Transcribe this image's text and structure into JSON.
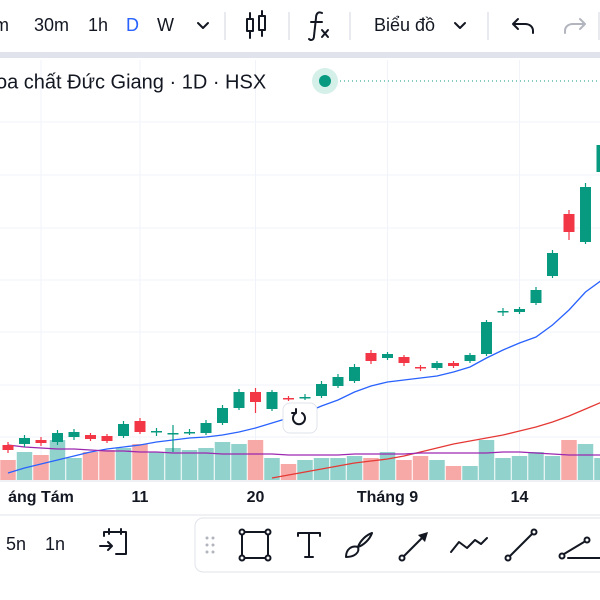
{
  "toolbar": {
    "intervals": [
      "m",
      "30m",
      "1h",
      "D",
      "W"
    ],
    "chart_menu": "Biểu đồ"
  },
  "legend": {
    "title": "oa chất Đức Giang · 1D · HSX"
  },
  "bottom_bar": {
    "ranges": [
      "5n",
      "1n"
    ]
  },
  "chart_data": {
    "type": "candlestick",
    "categories": [
      null,
      null,
      "áng Tám",
      null,
      null,
      null,
      null,
      null,
      "11",
      null,
      null,
      null,
      null,
      null,
      null,
      "20",
      null,
      null,
      null,
      null,
      null,
      null,
      null,
      "Tháng 9",
      null,
      null,
      null,
      null,
      null,
      null,
      null,
      "14",
      null,
      null,
      null,
      null,
      null
    ],
    "open": [
      35,
      36,
      40,
      38,
      43,
      45,
      44,
      44,
      59,
      48,
      46,
      47,
      47,
      57,
      72,
      88,
      71,
      82,
      82,
      84,
      94,
      99,
      127,
      122,
      123,
      113,
      112,
      117,
      119,
      126,
      168,
      168,
      177,
      204,
      266,
      238,
      308
    ],
    "high": [
      38,
      45,
      43,
      50,
      51,
      47,
      46,
      59,
      62,
      52,
      55,
      51,
      60,
      75,
      91,
      92,
      90,
      84,
      86,
      99,
      106,
      116,
      130,
      128,
      125,
      115,
      119,
      119,
      127,
      160,
      172,
      173,
      193,
      230,
      270,
      297,
      340
    ],
    "low": [
      27,
      33,
      34,
      35,
      40,
      39,
      37,
      42,
      46,
      44,
      28,
      45,
      45,
      55,
      70,
      67,
      69,
      79,
      80,
      82,
      92,
      97,
      116,
      120,
      114,
      109,
      110,
      112,
      117,
      124,
      164,
      166,
      175,
      202,
      240,
      236,
      305
    ],
    "close": [
      30,
      42,
      37,
      47,
      48,
      41,
      39,
      56,
      48,
      49,
      47,
      48,
      57,
      72,
      88,
      78,
      88,
      81,
      83,
      96,
      103,
      113,
      119,
      126,
      117,
      112,
      117,
      114,
      125,
      158,
      169,
      171,
      190,
      227,
      248,
      293,
      335
    ],
    "volume": [
      20,
      28,
      25,
      40,
      22,
      28,
      30,
      32,
      36,
      28,
      32,
      30,
      32,
      38,
      36,
      40,
      22,
      16,
      20,
      22,
      22,
      24,
      22,
      28,
      20,
      24,
      20,
      14,
      14,
      40,
      22,
      24,
      28,
      24,
      40,
      36,
      22
    ],
    "ylim": [
      0,
      385
    ],
    "up_color": "#089981",
    "down_color": "#f23645",
    "volume_up_color": "#92d2cc",
    "volume_down_color": "#f7a9a7",
    "series": [
      {
        "color": "#2962ff",
        "values": [
          7,
          12,
          16,
          20,
          24,
          28,
          31,
          33,
          35,
          38,
          40,
          42,
          43,
          45,
          48,
          52,
          57,
          62,
          67,
          74,
          80,
          88,
          94,
          98,
          100,
          102,
          104,
          108,
          113,
          122,
          130,
          137,
          143,
          155,
          170,
          188,
          200
        ]
      },
      {
        "color": "#e53935",
        "values": [
          null,
          null,
          null,
          null,
          null,
          null,
          null,
          null,
          null,
          null,
          null,
          null,
          null,
          null,
          null,
          null,
          2,
          5,
          8,
          11,
          14,
          17,
          19,
          21,
          24,
          28,
          32,
          36,
          39,
          42,
          45,
          49,
          53,
          58,
          64,
          71,
          78
        ]
      },
      {
        "color": "#9c27b0",
        "values": [
          35,
          33,
          32,
          31,
          31,
          30,
          29,
          29,
          28,
          28,
          27,
          27,
          27,
          26,
          26,
          26,
          26,
          25,
          25,
          25,
          25,
          26,
          26,
          26,
          26,
          27,
          27,
          27,
          27,
          27,
          28,
          28,
          27,
          26,
          25,
          25,
          25
        ]
      }
    ]
  }
}
